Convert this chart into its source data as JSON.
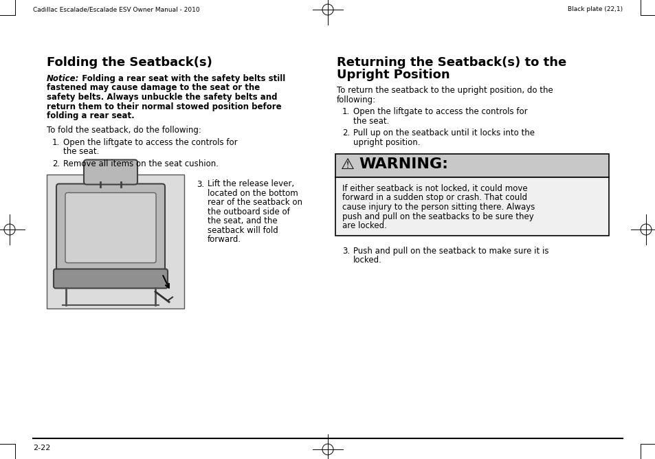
{
  "bg_color": "#ffffff",
  "header_left": "Cadillac Escalade/Escalade ESV Owner Manual - 2010",
  "header_right": "Black plate (22,1)",
  "footer_page": "2-22",
  "left_title": "Folding the Seatback(s)",
  "notice_italic": "Notice:",
  "notice_rest": "  Folding a rear seat with the safety belts still\nfastened may cause damage to the seat or the\nsafety belts. Always unbuckle the safety belts and\nreturn them to their normal stowed position before\nfolding a rear seat.",
  "left_intro": "To fold the seatback, do the following:",
  "step1a": "Open the liftgate to access the controls for",
  "step1b": "the seat.",
  "step2": "Remove all items on the seat cushion.",
  "step3_lines": [
    "Lift the release lever,",
    "located on the bottom",
    "rear of the seatback on",
    "the outboard side of",
    "the seat, and the",
    "seatback will fold",
    "forward."
  ],
  "right_title1": "Returning the Seatback(s) to the",
  "right_title2": "Upright Position",
  "right_intro1": "To return the seatback to the upright position, do the",
  "right_intro2": "following:",
  "rs1a": "Open the liftgate to access the controls for",
  "rs1b": "the seat.",
  "rs2a": "Pull up on the seatback until it locks into the",
  "rs2b": "upright position.",
  "warning_title": "WARNING:",
  "warning_lines": [
    "If either seatback is not locked, it could move",
    "forward in a sudden stop or crash. That could",
    "cause injury to the person sitting there. Always",
    "push and pull on the seatbacks to be sure they",
    "are locked."
  ],
  "rs3a": "Push and pull on the seatback to make sure it is",
  "rs3b": "locked.",
  "warning_bg": "#c8c8c8",
  "warning_body_bg": "#f0f0f0",
  "warning_border": "#000000",
  "page_width": 9.54,
  "page_height": 6.68
}
